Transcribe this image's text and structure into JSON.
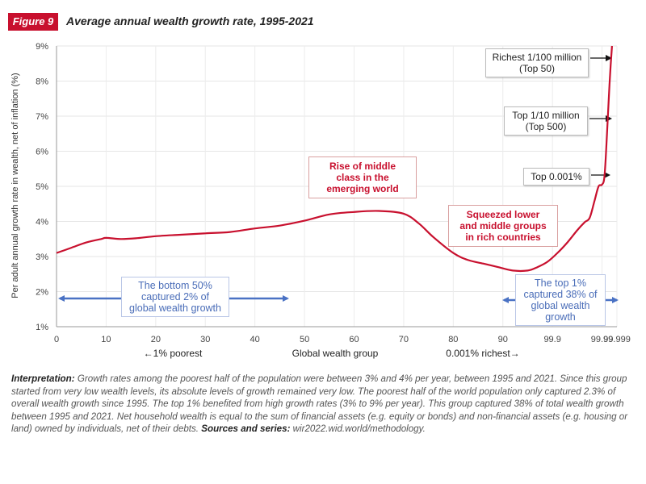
{
  "figure": {
    "badge": "Figure 9",
    "title": "Average annual wealth growth rate, 1995-2021"
  },
  "chart_data": {
    "type": "line",
    "ylabel": "Per adult annual growth rate in wealth, net of inflation (%)",
    "xlabel": "Global wealth group",
    "x_left_label": "←1% poorest",
    "x_right_label": "0.001% richest→",
    "ylim": [
      1,
      9
    ],
    "yticks": [
      "1%",
      "2%",
      "3%",
      "4%",
      "5%",
      "6%",
      "7%",
      "8%",
      "9%"
    ],
    "xticks": [
      "0",
      "10",
      "20",
      "30",
      "40",
      "50",
      "60",
      "70",
      "80",
      "90",
      "99.9",
      "99.99",
      "99.999"
    ],
    "grid": true,
    "line_color": "#c8102e",
    "series": [
      {
        "points": [
          [
            0,
            3.1
          ],
          [
            3,
            3.25
          ],
          [
            6,
            3.4
          ],
          [
            9,
            3.5
          ],
          [
            10,
            3.53
          ],
          [
            13,
            3.5
          ],
          [
            16,
            3.52
          ],
          [
            20,
            3.58
          ],
          [
            25,
            3.62
          ],
          [
            30,
            3.66
          ],
          [
            35,
            3.7
          ],
          [
            40,
            3.8
          ],
          [
            45,
            3.88
          ],
          [
            50,
            4.02
          ],
          [
            55,
            4.2
          ],
          [
            60,
            4.27
          ],
          [
            65,
            4.3
          ],
          [
            70,
            4.22
          ],
          [
            73,
            3.95
          ],
          [
            76,
            3.55
          ],
          [
            80,
            3.1
          ],
          [
            83,
            2.9
          ],
          [
            86,
            2.8
          ],
          [
            89,
            2.7
          ],
          [
            92,
            2.6
          ],
          [
            95,
            2.6
          ],
          [
            97,
            2.7
          ],
          [
            99,
            2.85
          ],
          [
            101,
            3.1
          ],
          [
            103,
            3.4
          ],
          [
            105,
            3.75
          ],
          [
            106.5,
            3.98
          ],
          [
            107.5,
            4.1
          ],
          [
            108.5,
            4.6
          ],
          [
            109.3,
            5.0
          ],
          [
            110,
            5.05
          ],
          [
            110.5,
            5.3
          ],
          [
            111,
            6.5
          ],
          [
            111.5,
            7.9
          ],
          [
            112,
            9.0
          ]
        ]
      }
    ],
    "annotations": {
      "middle_class": [
        "Rise of middle",
        "class in the",
        "emerging world"
      ],
      "squeezed": [
        "Squeezed lower",
        "and middle groups",
        "in rich countries"
      ],
      "bottom50": [
        "The bottom 50%",
        "captured 2% of",
        "global wealth growth"
      ],
      "top1": [
        "The top 1%",
        "captured 38% of",
        "global wealth",
        "growth"
      ],
      "top100m": [
        "Richest 1/100 million",
        "(Top 50)"
      ],
      "top10m": [
        "Top 1/10 million",
        "(Top 500)"
      ],
      "top0001": [
        "Top 0.001%"
      ]
    }
  },
  "notes": {
    "interpretation_label": "Interpretation:",
    "interpretation_text": " Growth rates among the poorest half of the population were between 3% and 4% per year, between 1995 and 2021. Since this group started from very low wealth levels, its absolute levels of growth remained very low. The poorest half of the world population only captured 2.3% of overall wealth growth since 1995. The top 1% benefited from high growth rates (3% to 9% per year). This group captured 38% of total wealth growth between 1995 and 2021. Net household wealth is equal to the sum of financial assets (e.g. equity or bonds) and non-financial assets (e.g. housing or land) owned by individuals, net of their debts. ",
    "sources_label": "Sources and series:",
    "sources_text": " wir2022.wid.world/methodology."
  }
}
